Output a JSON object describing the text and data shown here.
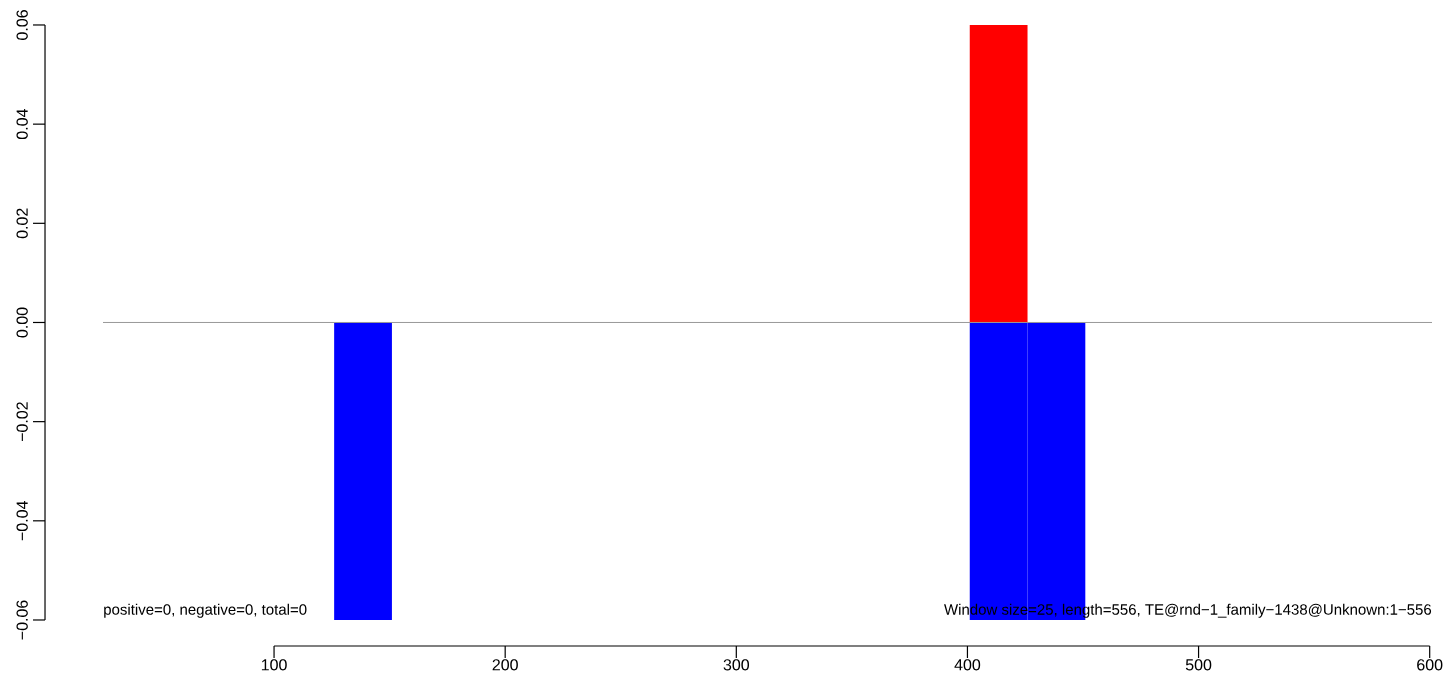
{
  "chart_data": {
    "type": "bar",
    "xlim": [
      26,
      601
    ],
    "xticks": [
      100,
      200,
      300,
      400,
      500,
      600
    ],
    "ylim": [
      -0.06,
      0.06
    ],
    "yticks": [
      {
        "value": -0.06,
        "label": "−0.06"
      },
      {
        "value": -0.04,
        "label": "−0.04"
      },
      {
        "value": -0.02,
        "label": "−0.02"
      },
      {
        "value": 0,
        "label": "0.00"
      },
      {
        "value": 0.02,
        "label": "0.02"
      },
      {
        "value": 0.04,
        "label": "0.04"
      },
      {
        "value": 0.06,
        "label": "0.06"
      }
    ],
    "series": [
      {
        "color": "#0000ff",
        "x": [
          138.5,
          413.5,
          438.5
        ],
        "values": [
          -0.06,
          -0.06,
          -0.06
        ]
      },
      {
        "color": "#ff0000",
        "x": [
          413.5
        ],
        "values": [
          0.06
        ]
      }
    ],
    "ref_lines": [
      {
        "axis": "y",
        "value": 0,
        "color": "#999999"
      }
    ],
    "annotations": [
      "positive=0, negative=0, total=0",
      "Window size=25, length=556, TE@rnd−1_family−1438@Unknown:1−556"
    ],
    "grid": false
  }
}
